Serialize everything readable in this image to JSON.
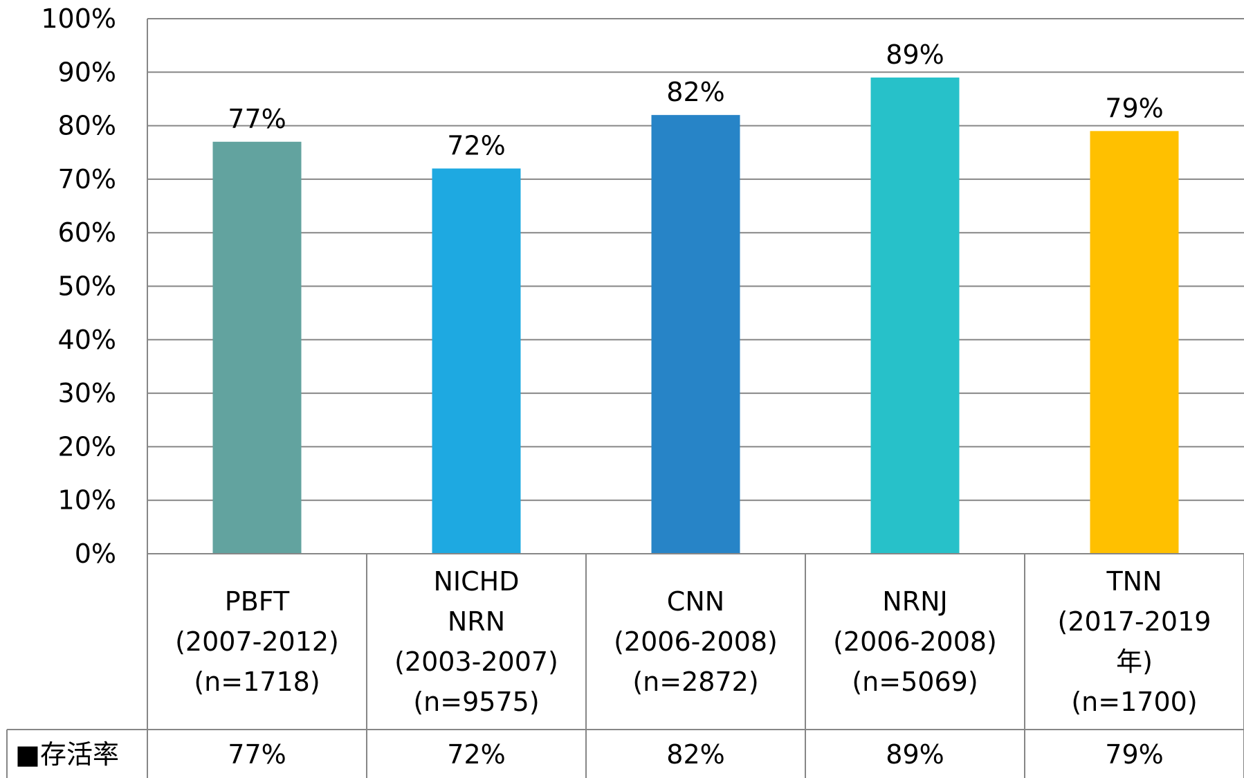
{
  "chart_data": {
    "type": "bar",
    "categories": [
      [
        "PBFT",
        "(2007-2012)",
        "(n=1718)"
      ],
      [
        "NICHD",
        "NRN",
        "(2003-2007)",
        "(n=9575)"
      ],
      [
        "CNN",
        "(2006-2008)",
        "(n=2872)"
      ],
      [
        "NRNJ",
        "(2006-2008)",
        "(n=5069)"
      ],
      [
        "TNN",
        "(2017-2019",
        "年)",
        "(n=1700)"
      ]
    ],
    "series": [
      {
        "name": "存活率",
        "values": [
          77,
          72,
          82,
          89,
          79
        ],
        "value_labels": [
          "77%",
          "72%",
          "82%",
          "89%",
          "79%"
        ],
        "colors": [
          "#62A39F",
          "#1EA9E1",
          "#2784C7",
          "#27C1C9",
          "#FFC000"
        ]
      }
    ],
    "ylim": [
      0,
      100
    ],
    "yticks": [
      "0%",
      "10%",
      "20%",
      "30%",
      "40%",
      "50%",
      "60%",
      "70%",
      "80%",
      "90%",
      "100%"
    ],
    "grid": true,
    "data_table": true,
    "legend_key": "■"
  }
}
